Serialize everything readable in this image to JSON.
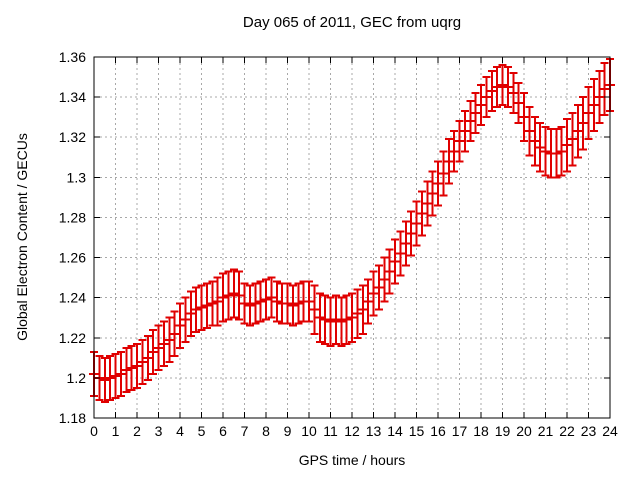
{
  "chart_data": {
    "type": "scatter",
    "style": "yerrorbars",
    "title": "Day 065 of 2011, GEC from uqrg",
    "xlabel": "GPS time / hours",
    "ylabel": "Global Electron Content / GECUs",
    "xlim": [
      0,
      24
    ],
    "ylim": [
      1.18,
      1.36
    ],
    "xticks": [
      0,
      1,
      2,
      3,
      4,
      5,
      6,
      7,
      8,
      9,
      10,
      11,
      12,
      13,
      14,
      15,
      16,
      17,
      18,
      19,
      20,
      21,
      22,
      23,
      24
    ],
    "xtick_labels": [
      "0",
      "1",
      "2",
      "3",
      "4",
      "5",
      "6",
      "7",
      "8",
      "9",
      "10",
      "11",
      "12",
      "13",
      "14",
      "15",
      "16",
      "17",
      "18",
      "19",
      "20",
      "21",
      "22",
      "23",
      "24"
    ],
    "yticks": [
      1.18,
      1.2,
      1.22,
      1.24,
      1.26,
      1.28,
      1.3,
      1.32,
      1.34,
      1.36
    ],
    "ytick_labels": [
      "1.18",
      "1.2",
      "1.22",
      "1.24",
      "1.26",
      "1.28",
      "1.3",
      "1.32",
      "1.34",
      "1.36"
    ],
    "grid": "dotted",
    "legend": "none",
    "series_name": "GEC",
    "series_color": "#e00000",
    "x": [
      0,
      0.25,
      0.5,
      0.75,
      1,
      1.25,
      1.5,
      1.75,
      2,
      2.25,
      2.5,
      2.75,
      3,
      3.25,
      3.5,
      3.75,
      4,
      4.25,
      4.5,
      4.75,
      5,
      5.25,
      5.5,
      5.75,
      6,
      6.25,
      6.5,
      6.75,
      7,
      7.25,
      7.5,
      7.75,
      8,
      8.25,
      8.5,
      8.75,
      9,
      9.25,
      9.5,
      9.75,
      10,
      10.25,
      10.5,
      10.75,
      11,
      11.25,
      11.5,
      11.75,
      12,
      12.25,
      12.5,
      12.75,
      13,
      13.25,
      13.5,
      13.75,
      14,
      14.25,
      14.5,
      14.75,
      15,
      15.25,
      15.5,
      15.75,
      16,
      16.25,
      16.5,
      16.75,
      17,
      17.25,
      17.5,
      17.75,
      18,
      18.25,
      18.5,
      18.75,
      19,
      19.25,
      19.5,
      19.75,
      20,
      20.25,
      20.5,
      20.75,
      21,
      21.25,
      21.5,
      21.75,
      22,
      22.25,
      22.5,
      22.75,
      23,
      23.25,
      23.5,
      23.75,
      24
    ],
    "y": [
      1.202,
      1.2,
      1.199,
      1.2,
      1.201,
      1.202,
      1.204,
      1.205,
      1.206,
      1.208,
      1.21,
      1.213,
      1.215,
      1.217,
      1.219,
      1.222,
      1.226,
      1.229,
      1.232,
      1.234,
      1.235,
      1.236,
      1.237,
      1.238,
      1.24,
      1.241,
      1.242,
      1.241,
      1.237,
      1.236,
      1.237,
      1.238,
      1.239,
      1.24,
      1.238,
      1.237,
      1.237,
      1.236,
      1.237,
      1.238,
      1.238,
      1.234,
      1.23,
      1.229,
      1.228,
      1.229,
      1.228,
      1.229,
      1.23,
      1.232,
      1.234,
      1.238,
      1.242,
      1.245,
      1.249,
      1.253,
      1.258,
      1.262,
      1.267,
      1.272,
      1.277,
      1.282,
      1.287,
      1.292,
      1.297,
      1.302,
      1.308,
      1.313,
      1.318,
      1.323,
      1.328,
      1.332,
      1.336,
      1.34,
      1.343,
      1.345,
      1.346,
      1.345,
      1.342,
      1.337,
      1.33,
      1.323,
      1.318,
      1.315,
      1.313,
      1.312,
      1.312,
      1.313,
      1.316,
      1.319,
      1.323,
      1.327,
      1.332,
      1.336,
      1.34,
      1.344,
      1.346
    ],
    "yerr": [
      0.011,
      0.011,
      0.011,
      0.011,
      0.011,
      0.011,
      0.011,
      0.011,
      0.011,
      0.011,
      0.011,
      0.011,
      0.011,
      0.011,
      0.011,
      0.011,
      0.011,
      0.011,
      0.011,
      0.011,
      0.011,
      0.011,
      0.011,
      0.012,
      0.012,
      0.012,
      0.012,
      0.012,
      0.01,
      0.01,
      0.01,
      0.01,
      0.01,
      0.01,
      0.01,
      0.01,
      0.01,
      0.01,
      0.01,
      0.01,
      0.01,
      0.012,
      0.012,
      0.012,
      0.012,
      0.012,
      0.012,
      0.012,
      0.012,
      0.012,
      0.012,
      0.011,
      0.011,
      0.011,
      0.011,
      0.011,
      0.011,
      0.011,
      0.011,
      0.011,
      0.011,
      0.011,
      0.011,
      0.011,
      0.011,
      0.011,
      0.011,
      0.01,
      0.01,
      0.01,
      0.01,
      0.01,
      0.01,
      0.01,
      0.01,
      0.01,
      0.01,
      0.01,
      0.01,
      0.01,
      0.012,
      0.012,
      0.012,
      0.012,
      0.012,
      0.012,
      0.012,
      0.012,
      0.013,
      0.013,
      0.013,
      0.013,
      0.013,
      0.013,
      0.013,
      0.013,
      0.013
    ],
    "colors": {
      "background": "#ffffff",
      "border": "#000000",
      "grid": "#a8a8a8",
      "text": "#000000",
      "series": "#e00000"
    }
  }
}
